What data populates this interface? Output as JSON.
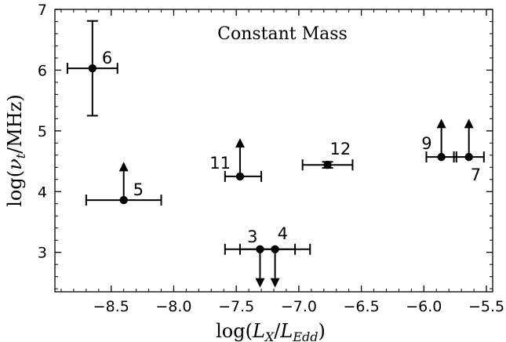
{
  "chart_data": {
    "type": "scatter",
    "title": "",
    "annotation": "Constant Mass",
    "xlabel": "log(L_X/L_Edd)",
    "ylabel": "log(ν_t/MHz)",
    "xlim": [
      -8.95,
      -5.45
    ],
    "ylim": [
      2.35,
      7.0
    ],
    "xticks": [
      -8.5,
      -8.0,
      -7.5,
      -7.0,
      -6.5,
      -6.0,
      -5.5
    ],
    "xtick_labels": [
      "−8.5",
      "−8.0",
      "−7.5",
      "−7.0",
      "−6.5",
      "−6.0",
      "−5.5"
    ],
    "yticks": [
      3,
      4,
      5,
      6,
      7
    ],
    "ytick_labels": [
      "3",
      "4",
      "5",
      "6",
      "7"
    ],
    "grid": false,
    "points": [
      {
        "label": "6",
        "x": -8.65,
        "y": 6.03,
        "xerr": [
          0.2,
          0.2
        ],
        "yerr": [
          0.78,
          0.78
        ],
        "limit": "none",
        "label_pos": "right"
      },
      {
        "label": "5",
        "x": -8.4,
        "y": 3.86,
        "xerr": [
          0.3,
          0.3
        ],
        "yerr": [
          0,
          0
        ],
        "limit": "lower",
        "label_pos": "right"
      },
      {
        "label": "11",
        "x": -7.47,
        "y": 4.25,
        "xerr": [
          0.12,
          0.17
        ],
        "yerr": [
          0,
          0
        ],
        "limit": "lower",
        "label_pos": "left"
      },
      {
        "label": "12",
        "x": -6.77,
        "y": 4.44,
        "xerr": [
          0.2,
          0.2
        ],
        "yerr": [
          0.05,
          0.05
        ],
        "limit": "none",
        "label_pos": "above-right"
      },
      {
        "label": "3",
        "x": -7.31,
        "y": 3.05,
        "xerr": [
          0.28,
          0.28
        ],
        "yerr": [
          0,
          0
        ],
        "limit": "upper",
        "label_pos": "above-left"
      },
      {
        "label": "4",
        "x": -7.19,
        "y": 3.05,
        "xerr": [
          0.28,
          0.28
        ],
        "yerr": [
          0,
          0
        ],
        "limit": "upper",
        "label_pos": "above-right"
      },
      {
        "label": "9",
        "x": -5.86,
        "y": 4.57,
        "xerr": [
          0.12,
          0.12
        ],
        "yerr": [
          0,
          0
        ],
        "limit": "lower",
        "label_pos": "left"
      },
      {
        "label": "7",
        "x": -5.64,
        "y": 4.57,
        "xerr": [
          0.12,
          0.12
        ],
        "yerr": [
          0,
          0
        ],
        "limit": "lower",
        "label_pos": "below-right"
      }
    ]
  }
}
